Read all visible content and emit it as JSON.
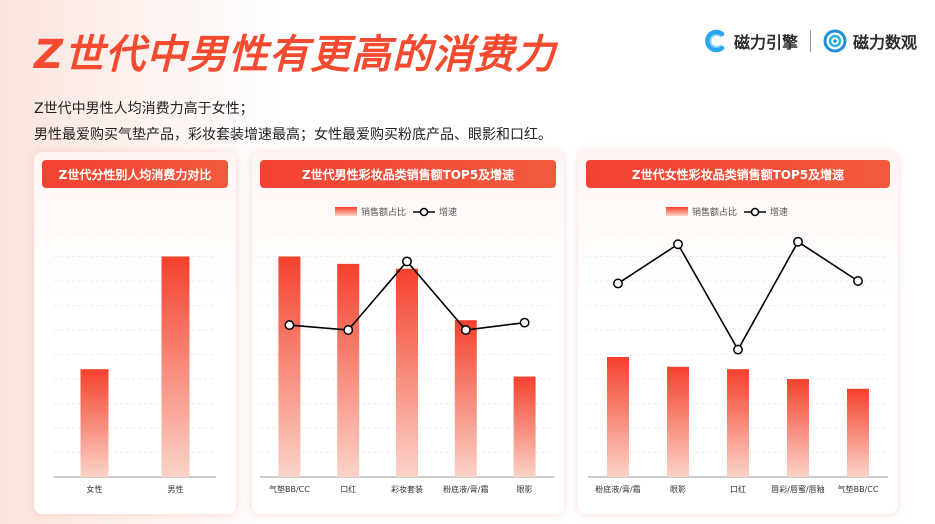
{
  "page": {
    "title": "Z世代中男性有更高的消费力",
    "desc_line1": "Z世代中男性人均消费力高于女性；",
    "desc_line2": "男性最爱购买气垫产品，彩妆套装增速最高；女性最爱购买粉底产品、眼影和口红。"
  },
  "logos": {
    "brand1": "磁力引擎",
    "brand2": "磁力数观",
    "brand1_icon": "magnet-c-icon",
    "brand2_icon": "eye-circle-icon"
  },
  "colors": {
    "accent": "#f34a30",
    "bar_top": "#f5412d",
    "bar_bottom": "#fbd3c8",
    "line": "#000000"
  },
  "chart_data": [
    {
      "type": "bar",
      "title": "Z世代分性别人均消费力对比",
      "categories": [
        "女性",
        "男性"
      ],
      "values": [
        44,
        90
      ],
      "ylim": [
        0,
        100
      ],
      "grid": true
    },
    {
      "type": "bar+line",
      "title": "Z世代男性彩妆品类销售额TOP5及增速",
      "categories": [
        "气垫BB/CC",
        "口红",
        "彩妆套装",
        "粉底液/膏/霜",
        "眼影"
      ],
      "series": [
        {
          "name": "销售额占比",
          "type": "bar",
          "values": [
            90,
            87,
            85,
            64,
            41
          ]
        },
        {
          "name": "增速",
          "type": "line",
          "values": [
            62,
            60,
            88,
            60,
            63
          ]
        }
      ],
      "ylim": [
        0,
        100
      ],
      "legend": "top-center",
      "grid": true
    },
    {
      "type": "bar+line",
      "title": "Z世代女性彩妆品类销售额TOP5及增速",
      "categories": [
        "粉底液/膏/霜",
        "眼影",
        "口红",
        "唇彩/唇蜜/唇釉",
        "气垫BB/CC"
      ],
      "series": [
        {
          "name": "销售额占比",
          "type": "bar",
          "values": [
            49,
            45,
            44,
            40,
            36
          ]
        },
        {
          "name": "增速",
          "type": "line",
          "values": [
            79,
            95,
            52,
            96,
            80
          ]
        }
      ],
      "ylim": [
        0,
        100
      ],
      "legend": "top-center",
      "grid": true
    }
  ]
}
